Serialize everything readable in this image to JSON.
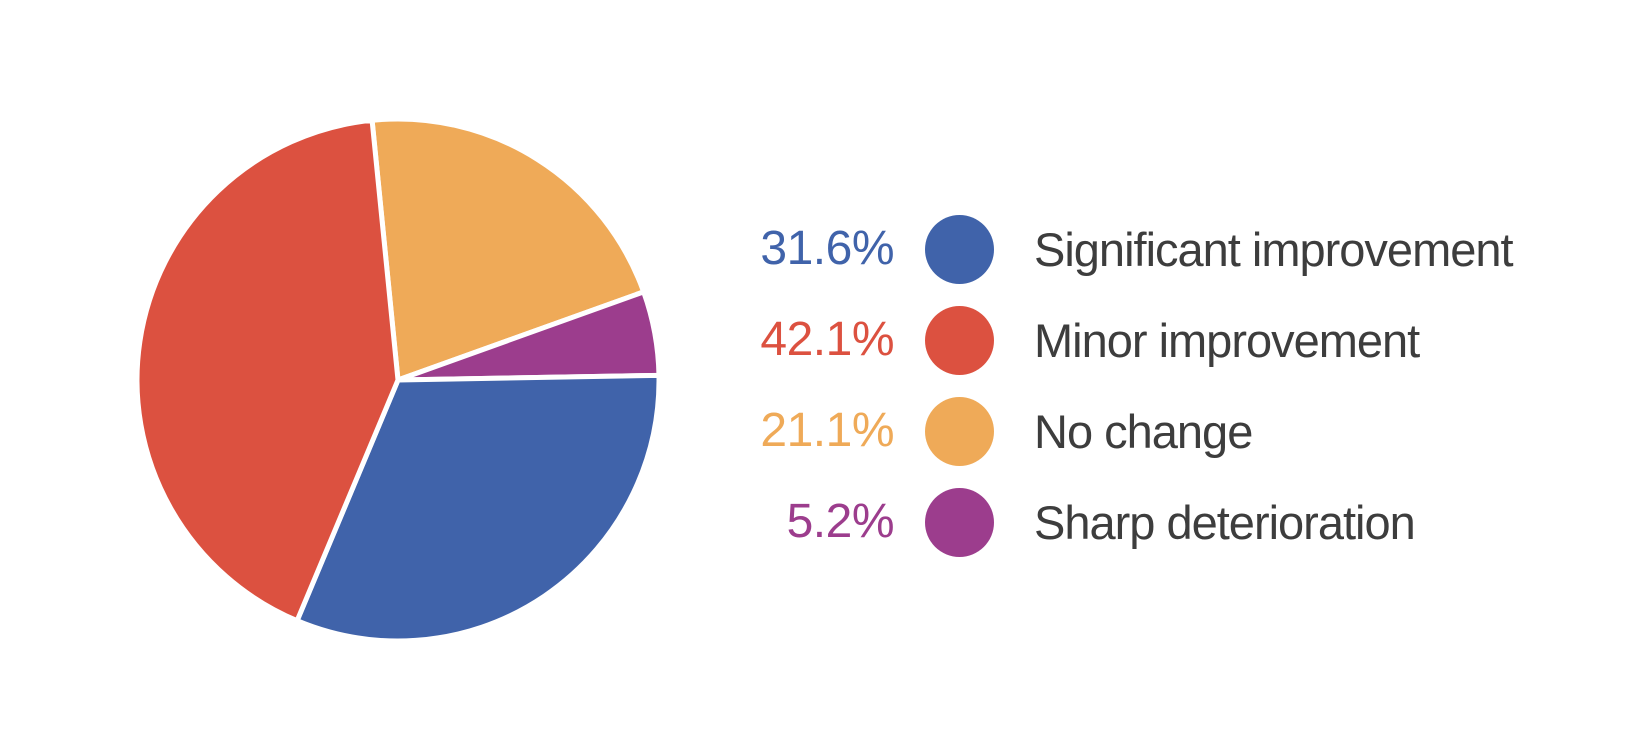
{
  "chart_data": {
    "type": "pie",
    "title": "",
    "series": [
      {
        "label": "Significant improvement",
        "value": 31.6,
        "display": "31.6%",
        "color": "#4063aa"
      },
      {
        "label": "Minor improvement",
        "value": 42.1,
        "display": "42.1%",
        "color": "#dc5140"
      },
      {
        "label": "No change",
        "value": 21.1,
        "display": "21.1%",
        "color": "#efaa58"
      },
      {
        "label": "Sharp deterioration",
        "value": 5.2,
        "display": "5.2%",
        "color": "#9c3d8d"
      }
    ],
    "layout": {
      "start_angle_deg": -5.7,
      "clockwise": true,
      "draw_order": [
        2,
        3,
        0,
        1
      ],
      "slice_gap_color": "#ffffff",
      "background_color": "#ffffff",
      "legend_position": "right",
      "legend_text_color": "#3d3d3d"
    }
  }
}
